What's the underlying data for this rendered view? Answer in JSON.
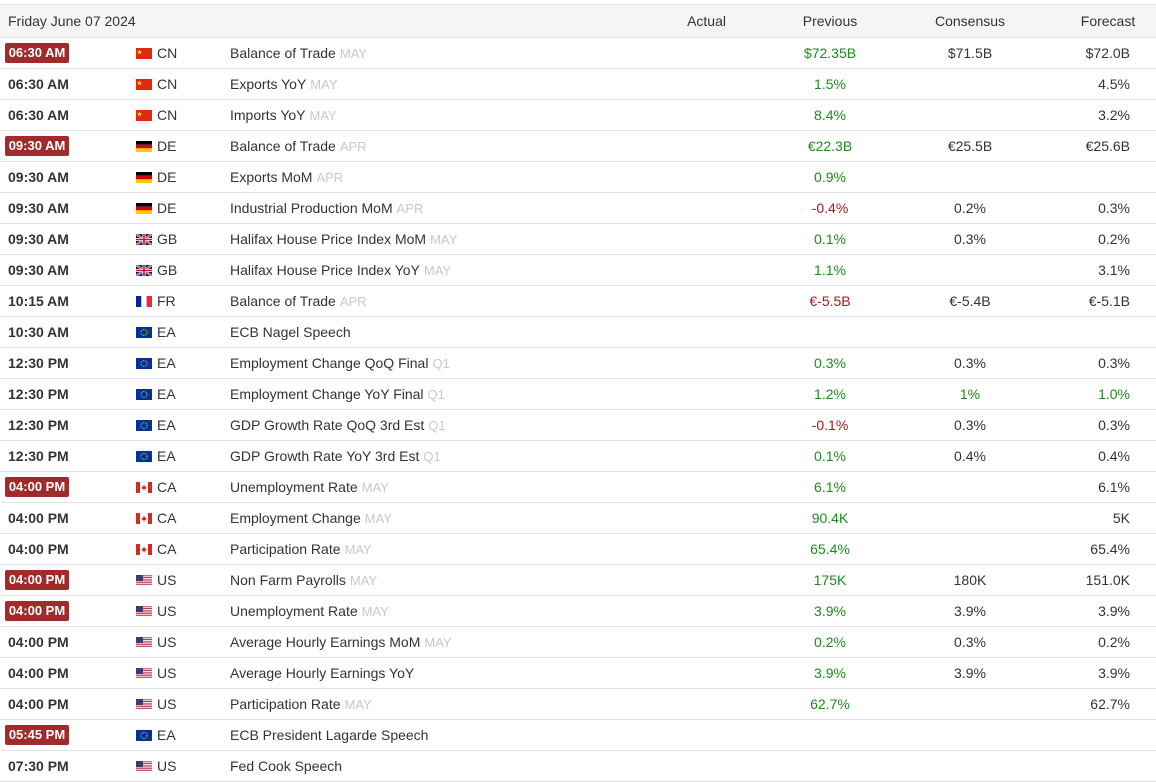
{
  "header": {
    "date": "Friday June 07 2024",
    "columns": [
      "Actual",
      "Previous",
      "Consensus",
      "Forecast"
    ]
  },
  "rows": [
    {
      "time": "06:30 AM",
      "highlight": true,
      "country": "CN",
      "event": "Balance of Trade",
      "period": "MAY",
      "previous": {
        "text": "$72.35B",
        "color": "#1d8a1d"
      },
      "consensus": "$71.5B",
      "forecast": "$72.0B"
    },
    {
      "time": "06:30 AM",
      "country": "CN",
      "event": "Exports YoY",
      "period": "MAY",
      "previous": {
        "text": "1.5%",
        "color": "#1d8a1d"
      },
      "forecast": "4.5%"
    },
    {
      "time": "06:30 AM",
      "country": "CN",
      "event": "Imports YoY",
      "period": "MAY",
      "previous": {
        "text": "8.4%",
        "color": "#1d8a1d"
      },
      "forecast": "3.2%"
    },
    {
      "time": "09:30 AM",
      "highlight": true,
      "country": "DE",
      "event": "Balance of Trade",
      "period": "APR",
      "previous": {
        "text": "€22.3B",
        "color": "#1d8a1d"
      },
      "consensus": "€25.5B",
      "forecast": "€25.6B"
    },
    {
      "time": "09:30 AM",
      "country": "DE",
      "event": "Exports MoM",
      "period": "APR",
      "previous": {
        "text": "0.9%",
        "color": "#1d8a1d"
      }
    },
    {
      "time": "09:30 AM",
      "country": "DE",
      "event": "Industrial Production MoM",
      "period": "APR",
      "previous": {
        "text": "-0.4%",
        "color": "#a11c1c"
      },
      "consensus": "0.2%",
      "forecast": "0.3%"
    },
    {
      "time": "09:30 AM",
      "country": "GB",
      "event": "Halifax House Price Index MoM",
      "period": "MAY",
      "previous": {
        "text": "0.1%",
        "color": "#1d8a1d"
      },
      "consensus": "0.3%",
      "forecast": "0.2%"
    },
    {
      "time": "09:30 AM",
      "country": "GB",
      "event": "Halifax House Price Index YoY",
      "period": "MAY",
      "previous": {
        "text": "1.1%",
        "color": "#1d8a1d"
      },
      "forecast": "3.1%"
    },
    {
      "time": "10:15 AM",
      "country": "FR",
      "event": "Balance of Trade",
      "period": "APR",
      "previous": {
        "text": "€-5.5B",
        "color": "#a11c1c"
      },
      "consensus": "€-5.4B",
      "forecast": "€-5.1B"
    },
    {
      "time": "10:30 AM",
      "country": "EA",
      "event": "ECB Nagel Speech"
    },
    {
      "time": "12:30 PM",
      "country": "EA",
      "event": "Employment Change QoQ Final",
      "period": "Q1",
      "previous": {
        "text": "0.3%",
        "color": "#1d8a1d"
      },
      "consensus": "0.3%",
      "forecast": "0.3%"
    },
    {
      "time": "12:30 PM",
      "country": "EA",
      "event": "Employment Change YoY Final",
      "period": "Q1",
      "previous": {
        "text": "1.2%",
        "color": "#1d8a1d"
      },
      "consensus": {
        "text": "1%",
        "color": "#1d8a1d"
      },
      "forecast": {
        "text": "1.0%",
        "color": "#1d8a1d"
      }
    },
    {
      "time": "12:30 PM",
      "country": "EA",
      "event": "GDP Growth Rate QoQ 3rd Est",
      "period": "Q1",
      "previous": {
        "text": "-0.1%",
        "color": "#a11c1c"
      },
      "consensus": "0.3%",
      "forecast": "0.3%"
    },
    {
      "time": "12:30 PM",
      "country": "EA",
      "event": "GDP Growth Rate YoY 3rd Est",
      "period": "Q1",
      "previous": {
        "text": "0.1%",
        "color": "#1d8a1d"
      },
      "consensus": "0.4%",
      "forecast": "0.4%"
    },
    {
      "time": "04:00 PM",
      "highlight": true,
      "country": "CA",
      "event": "Unemployment Rate",
      "period": "MAY",
      "previous": {
        "text": "6.1%",
        "color": "#1d8a1d"
      },
      "forecast": "6.1%"
    },
    {
      "time": "04:00 PM",
      "country": "CA",
      "event": "Employment Change",
      "period": "MAY",
      "previous": {
        "text": "90.4K",
        "color": "#1d8a1d"
      },
      "forecast": "5K"
    },
    {
      "time": "04:00 PM",
      "country": "CA",
      "event": "Participation Rate",
      "period": "MAY",
      "previous": {
        "text": "65.4%",
        "color": "#1d8a1d"
      },
      "forecast": "65.4%"
    },
    {
      "time": "04:00 PM",
      "highlight": true,
      "country": "US",
      "event": "Non Farm Payrolls",
      "period": "MAY",
      "previous": {
        "text": "175K",
        "color": "#1d8a1d"
      },
      "consensus": "180K",
      "forecast": "151.0K"
    },
    {
      "time": "04:00 PM",
      "highlight": true,
      "country": "US",
      "event": "Unemployment Rate",
      "period": "MAY",
      "previous": {
        "text": "3.9%",
        "color": "#1d8a1d"
      },
      "consensus": "3.9%",
      "forecast": "3.9%"
    },
    {
      "time": "04:00 PM",
      "country": "US",
      "event": "Average Hourly Earnings MoM",
      "period": "MAY",
      "previous": {
        "text": "0.2%",
        "color": "#1d8a1d"
      },
      "consensus": "0.3%",
      "forecast": "0.2%"
    },
    {
      "time": "04:00 PM",
      "country": "US",
      "event": "Average Hourly Earnings YoY",
      "previous": {
        "text": "3.9%",
        "color": "#1d8a1d"
      },
      "consensus": "3.9%",
      "forecast": "3.9%"
    },
    {
      "time": "04:00 PM",
      "country": "US",
      "event": "Participation Rate",
      "period": "MAY",
      "previous": {
        "text": "62.7%",
        "color": "#1d8a1d"
      },
      "forecast": "62.7%"
    },
    {
      "time": "05:45 PM",
      "highlight": true,
      "country": "EA",
      "event": "ECB President Lagarde Speech"
    },
    {
      "time": "07:30 PM",
      "country": "US",
      "event": "Fed Cook Speech"
    }
  ]
}
